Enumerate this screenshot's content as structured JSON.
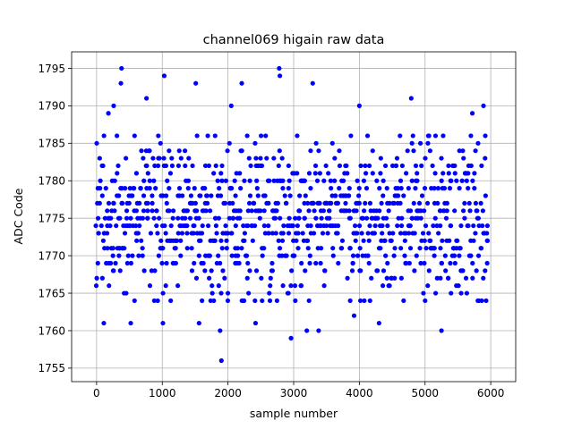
{
  "chart_data": {
    "type": "scatter",
    "title": "channel069 higain raw data",
    "xlabel": "sample number",
    "ylabel": "ADC Code",
    "xlim": [
      -380,
      6380
    ],
    "ylim": [
      1753.2,
      1797.2
    ],
    "xticks": [
      0,
      1000,
      2000,
      3000,
      4000,
      5000,
      6000
    ],
    "yticks": [
      1755,
      1760,
      1765,
      1770,
      1775,
      1780,
      1785,
      1790,
      1795
    ],
    "grid": true,
    "marker_color": "#0000ff",
    "series": [
      {
        "n_samples": 5940,
        "sample_step": 30,
        "baseline_level_range": [
          1764,
          1786
        ],
        "outliers": [
          [
            380,
            1795
          ],
          [
            370,
            1793
          ],
          [
            1030,
            1794
          ],
          [
            1510,
            1793
          ],
          [
            760,
            1791
          ],
          [
            1880,
            1760
          ],
          [
            1900,
            1756
          ],
          [
            2780,
            1795
          ],
          [
            2790,
            1794
          ],
          [
            2210,
            1793
          ],
          [
            3290,
            1793
          ],
          [
            2960,
            1759
          ],
          [
            3200,
            1760
          ],
          [
            3380,
            1760
          ],
          [
            3920,
            1762
          ],
          [
            4300,
            1761
          ],
          [
            4790,
            1791
          ],
          [
            4000,
            1790
          ],
          [
            5250,
            1760
          ],
          [
            5890,
            1790
          ],
          [
            2050,
            1790
          ],
          [
            180,
            1789
          ],
          [
            110,
            1761
          ],
          [
            520,
            1761
          ],
          [
            1010,
            1761
          ],
          [
            1560,
            1761
          ],
          [
            2420,
            1761
          ],
          [
            5930,
            1764
          ],
          [
            260,
            1790
          ],
          [
            5720,
            1789
          ]
        ]
      }
    ]
  }
}
